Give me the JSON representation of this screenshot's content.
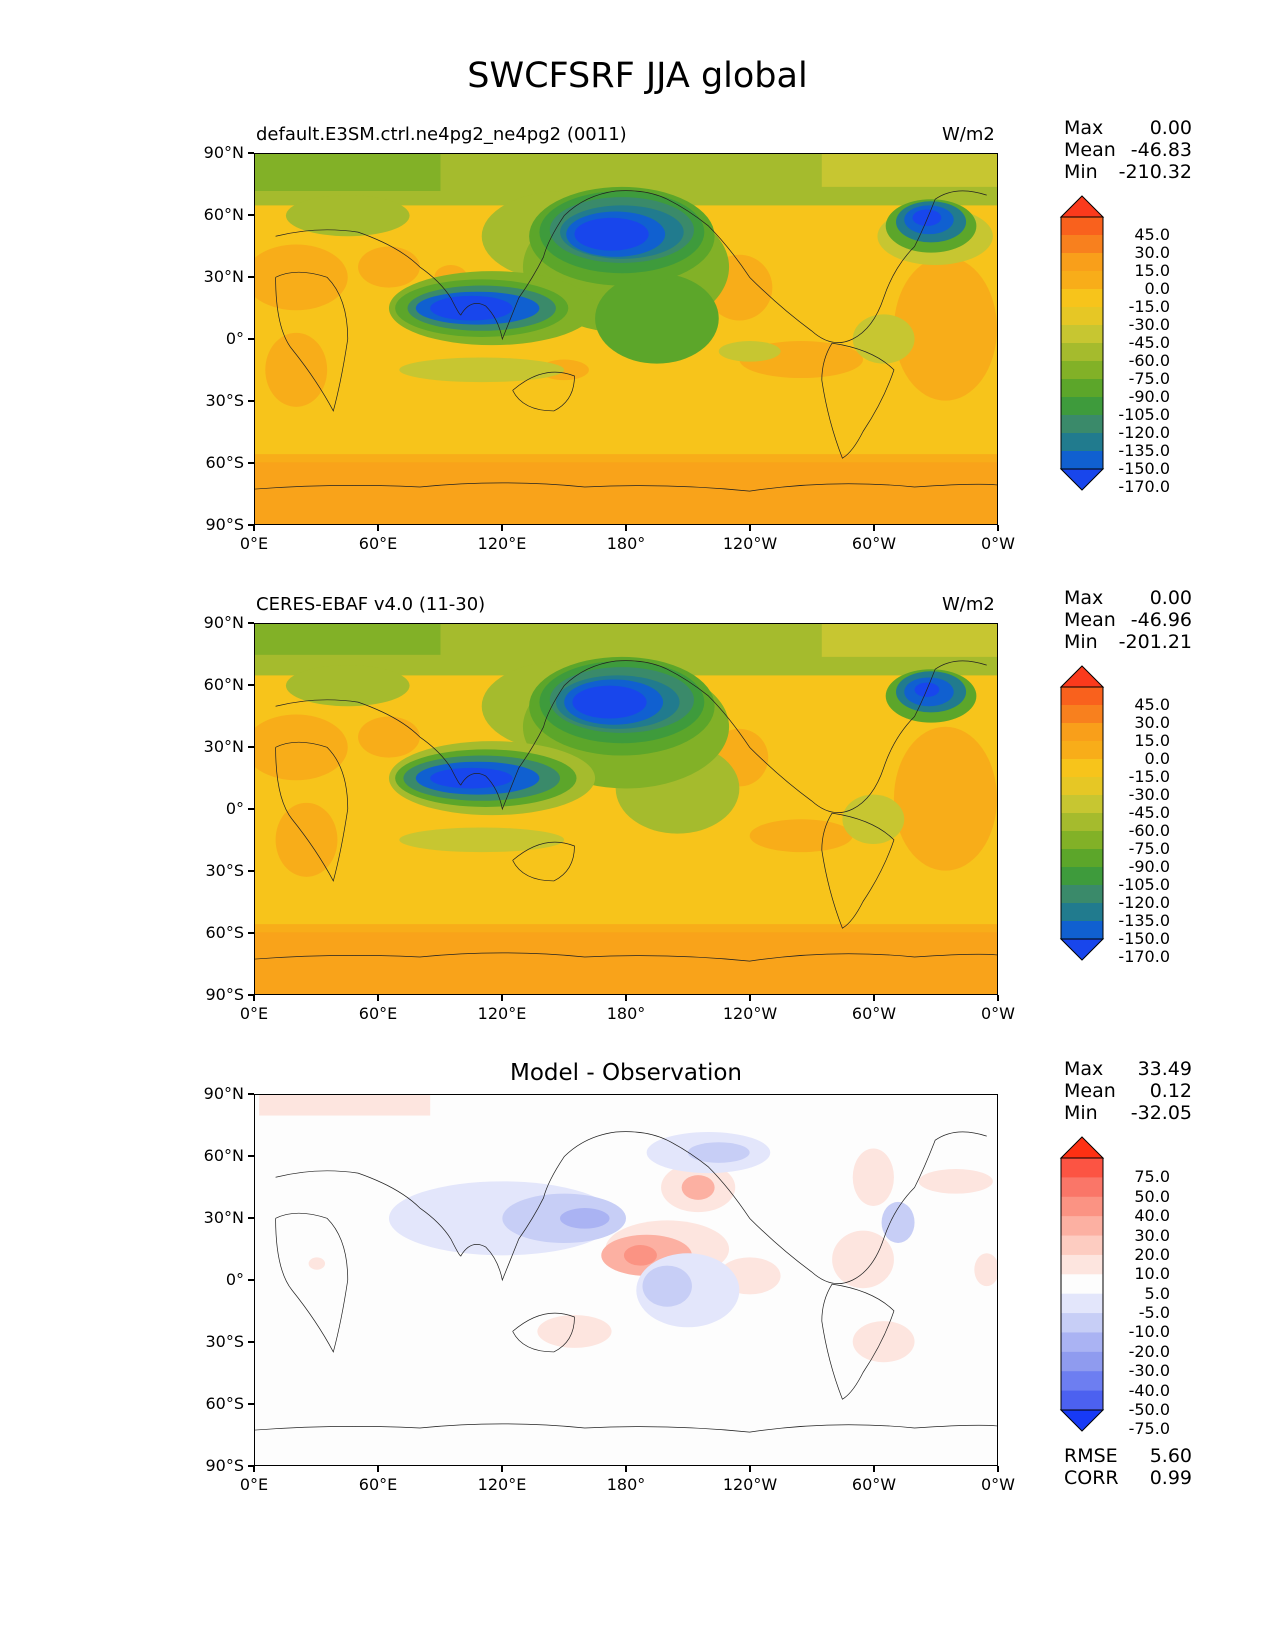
{
  "title": "SWCFSRF JJA global",
  "x_ticks": [
    "0°E",
    "60°E",
    "120°E",
    "180°",
    "120°W",
    "60°W",
    "0°W"
  ],
  "y_ticks": [
    "90°N",
    "60°N",
    "30°N",
    "0°",
    "30°S",
    "60°S",
    "90°S"
  ],
  "stat_labels": {
    "max": "Max",
    "mean": "Mean",
    "min": "Min"
  },
  "panels": [
    {
      "left_label": "default.E3SM.ctrl.ne4pg2_ne4pg2 (0011)",
      "center_title": "",
      "units": "W/m2",
      "stats": {
        "max": "0.00",
        "mean": "-46.83",
        "min": "-210.32"
      }
    },
    {
      "left_label": "CERES-EBAF v4.0 (11-30)",
      "center_title": "",
      "units": "W/m2",
      "stats": {
        "max": "0.00",
        "mean": "-46.96",
        "min": "-201.21"
      }
    },
    {
      "left_label": "",
      "center_title": "Model - Observation",
      "units": "",
      "stats": {
        "max": "33.49",
        "mean": "0.12",
        "min": "-32.05"
      }
    }
  ],
  "colorbars": {
    "field": {
      "labels": [
        "45.0",
        "30.0",
        "15.0",
        "0.0",
        "-15.0",
        "-30.0",
        "-45.0",
        "-60.0",
        "-75.0",
        "-90.0",
        "-105.0",
        "-120.0",
        "-135.0",
        "-150.0",
        "-170.0"
      ],
      "colors": [
        "#fb3a1c",
        "#f9611d",
        "#f8801e",
        "#f99f1a",
        "#f8ad19",
        "#f7c41b",
        "#e6c725",
        "#c7c631",
        "#a5bb2d",
        "#82b127",
        "#5ca62a",
        "#3e9b3c",
        "#3a8a6a",
        "#217b8e",
        "#1060d0",
        "#1846ec"
      ]
    },
    "diff": {
      "labels": [
        "75.0",
        "50.0",
        "40.0",
        "30.0",
        "20.0",
        "10.0",
        "5.0",
        "-5.0",
        "-10.0",
        "-20.0",
        "-30.0",
        "-40.0",
        "-50.0",
        "-75.0"
      ],
      "colors": [
        "#fe3013",
        "#fc5443",
        "#fa7668",
        "#fb9383",
        "#fcb0a2",
        "#fdccc1",
        "#fde5df",
        "#fdfdfd",
        "#e3e6fb",
        "#c7cef6",
        "#aab3f3",
        "#8f9bef",
        "#6d7ef1",
        "#4c61f0",
        "#173af6"
      ]
    }
  },
  "metrics": {
    "rmse_label": "RMSE",
    "rmse": "5.60",
    "corr_label": "CORR",
    "corr": "0.99"
  }
}
